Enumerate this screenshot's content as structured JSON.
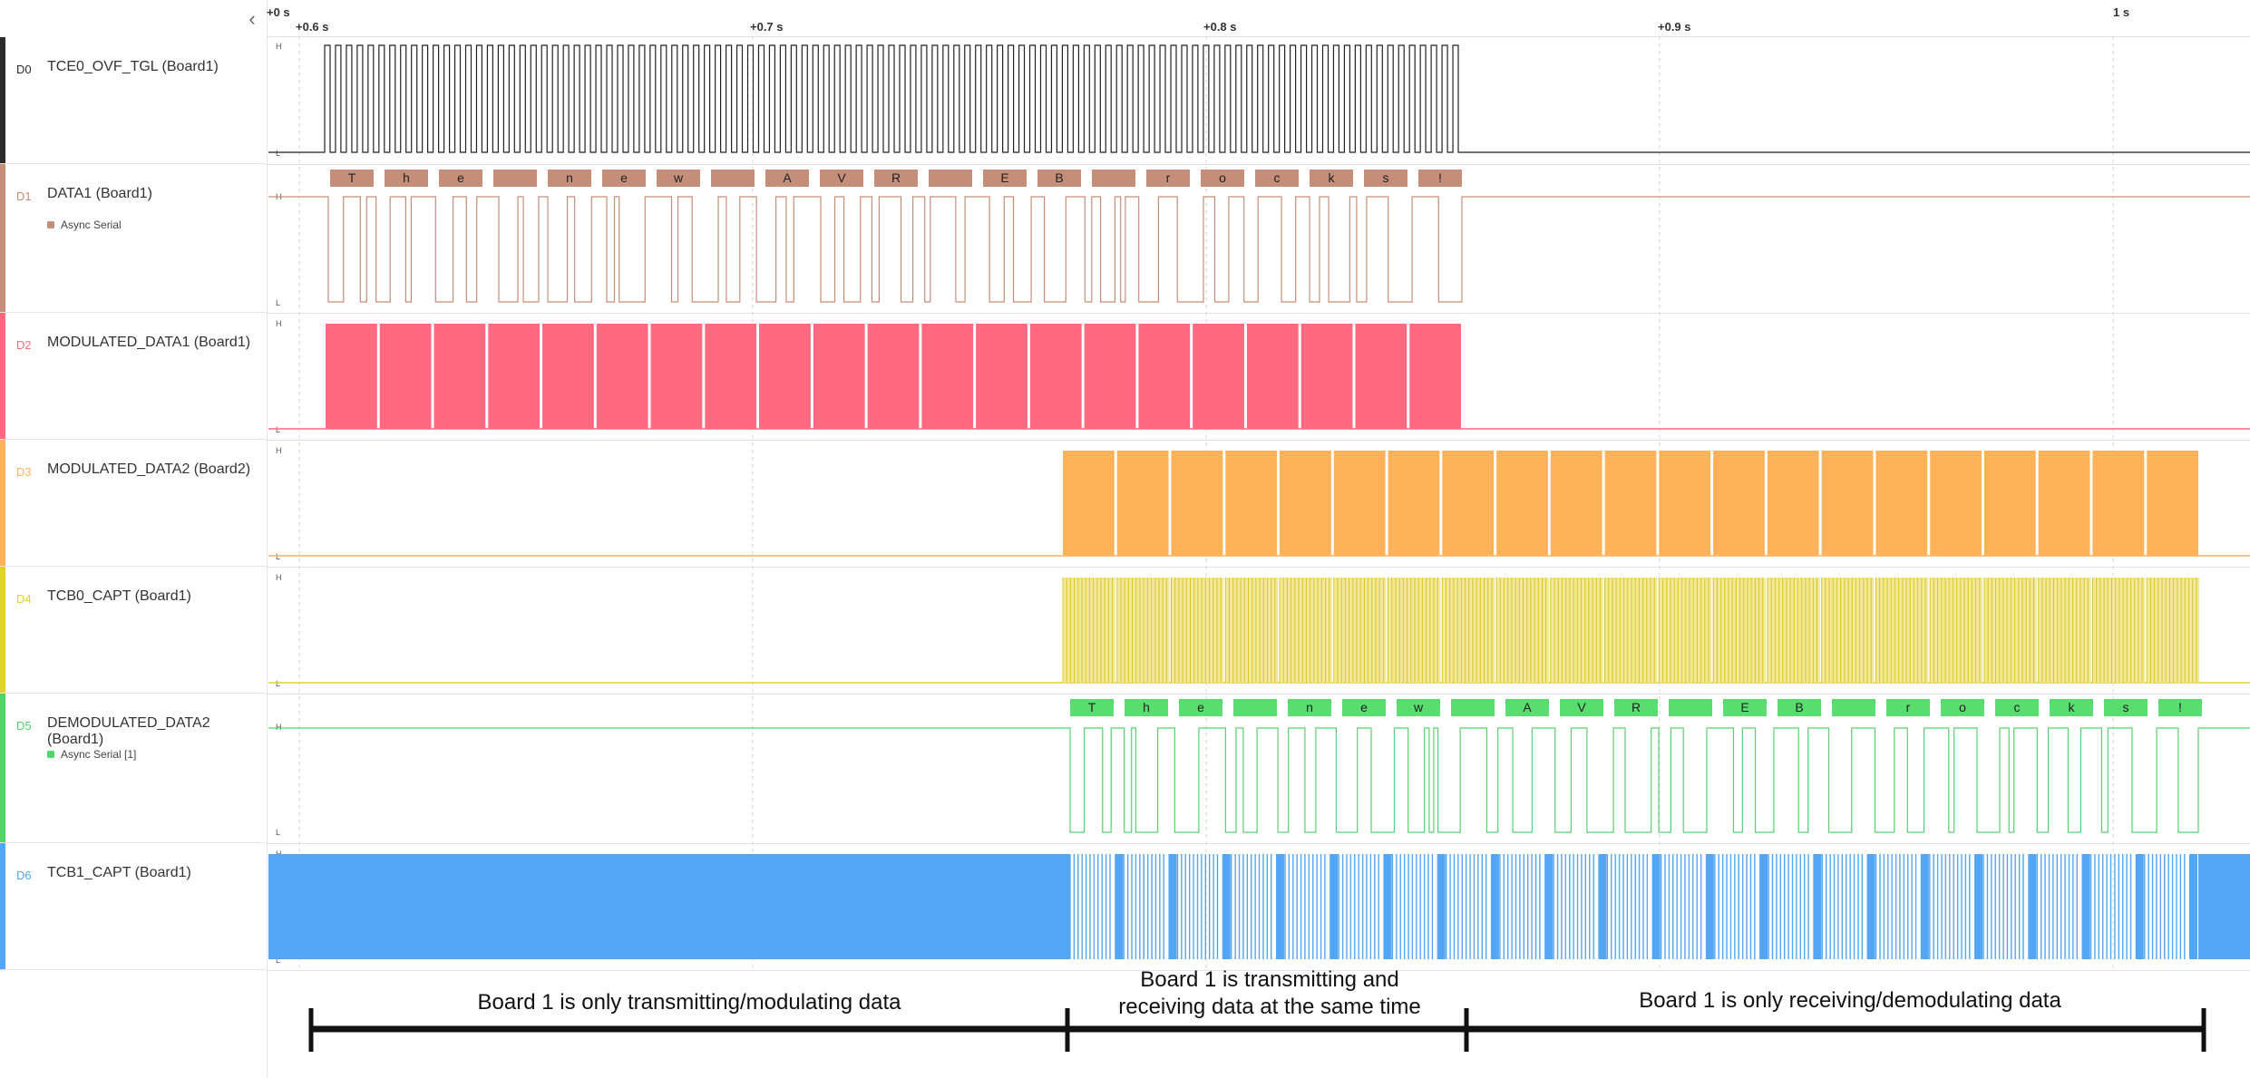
{
  "panel": {
    "collapse_icon": "chevron-left-icon",
    "collapse_glyph": "‹"
  },
  "timeline": {
    "ticks": [
      {
        "label": "+0 s"
      },
      {
        "label": "+0.6 s"
      },
      {
        "label": "+0.7 s"
      },
      {
        "label": "+0.8 s"
      },
      {
        "label": "+0.9 s"
      },
      {
        "label": "1 s"
      }
    ]
  },
  "level_labels": {
    "high": "H",
    "low": "L"
  },
  "channels": [
    {
      "id": "D0",
      "name": "TCE0_OVF_TGL (Board1)",
      "color": "#2b2b2b",
      "analyzer": ""
    },
    {
      "id": "D1",
      "name": "DATA1 (Board1)",
      "color": "#c48e7a",
      "analyzer": "Async Serial"
    },
    {
      "id": "D2",
      "name": "MODULATED_DATA1 (Board1)",
      "color": "#ff6a80",
      "analyzer": ""
    },
    {
      "id": "D3",
      "name": "MODULATED_DATA2 (Board2)",
      "color": "#ffb25a",
      "analyzer": ""
    },
    {
      "id": "D4",
      "name": "TCB0_CAPT (Board1)",
      "color": "#e2d22c",
      "analyzer": ""
    },
    {
      "id": "D5",
      "name": "DEMODULATED_DATA2 (Board1)",
      "color": "#4fd46a",
      "analyzer": "Async Serial [1]"
    },
    {
      "id": "D6",
      "name": "TCB1_CAPT (Board1)",
      "color": "#52a6f5",
      "analyzer": ""
    }
  ],
  "decoded": {
    "data1": [
      "T",
      "h",
      "e",
      " ",
      "n",
      "e",
      "w",
      " ",
      "A",
      "V",
      "R",
      " ",
      "E",
      "B",
      " ",
      "r",
      "o",
      "c",
      "k",
      "s",
      "!"
    ],
    "demod2": [
      "T",
      "h",
      "e",
      " ",
      "n",
      "e",
      "w",
      " ",
      "A",
      "V",
      "R",
      " ",
      "E",
      "B",
      " ",
      "r",
      "o",
      "c",
      "k",
      "s",
      "!"
    ]
  },
  "annotations": {
    "phase1": "Board 1 is only transmitting/modulating data",
    "phase2_line1": "Board 1 is transmitting and",
    "phase2_line2": "receiving data at the same time",
    "phase3": "Board 1 is only receiving/demodulating data"
  }
}
